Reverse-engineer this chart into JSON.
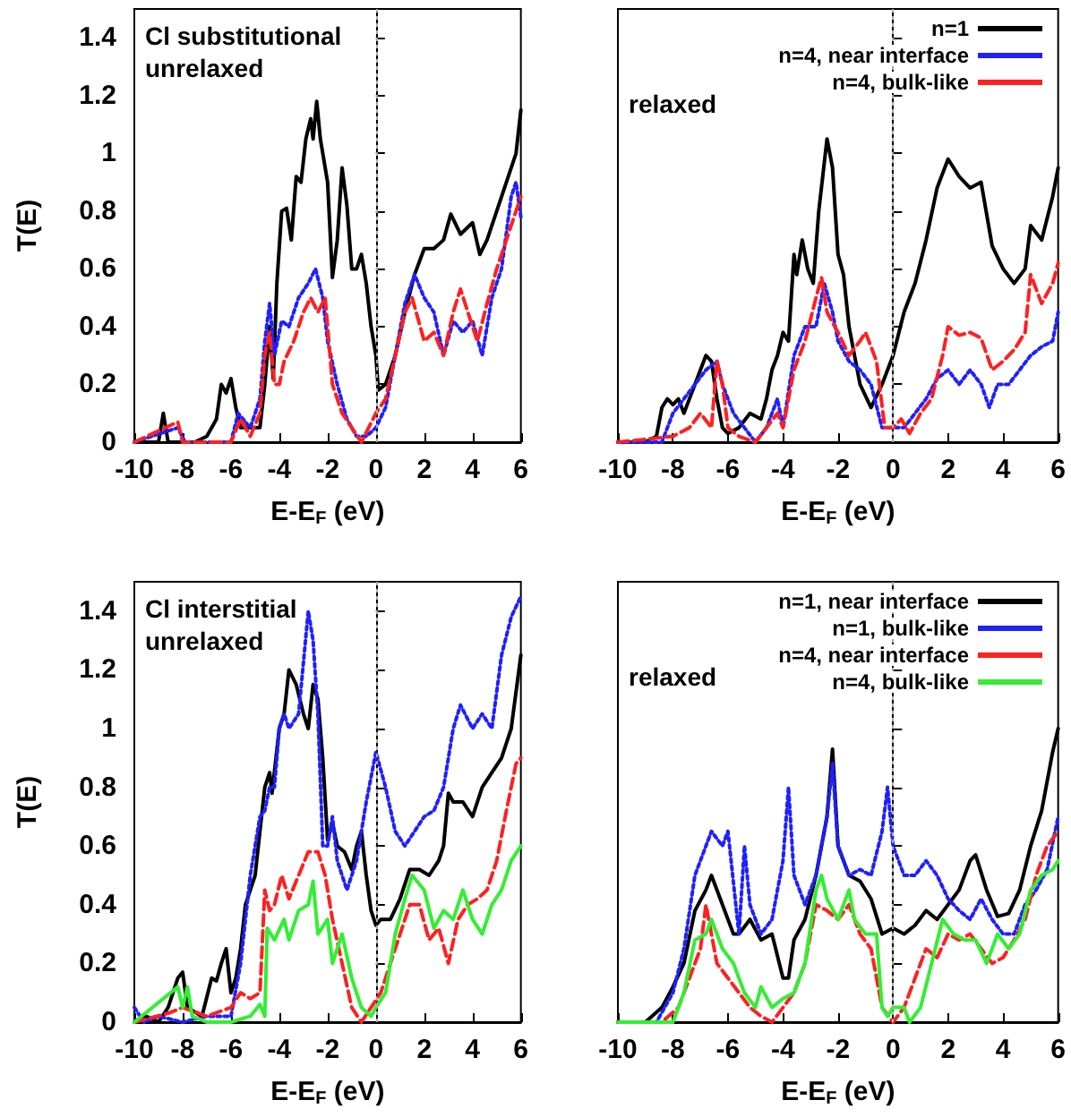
{
  "chart_data": [
    {
      "type": "line",
      "xlabel": "E-E$_{F}$ (eV)",
      "ylabel": "T(E)",
      "annotations": [
        "Cl substitutional\nunrelaxed"
      ],
      "xlim": [
        -10,
        6
      ],
      "xticks": [
        -10,
        -8,
        -6,
        -4,
        -2,
        0,
        2,
        4,
        6
      ],
      "ylim": [
        0,
        1.5
      ],
      "yticks": [
        0,
        0.2,
        0.4,
        0.6,
        0.8,
        1,
        1.2,
        1.4
      ],
      "grid": false,
      "ref_lines": [
        {
          "axis": "x",
          "value": 0,
          "color": "#aaaaaa",
          "line_style": "dotted"
        }
      ],
      "series": [
        {
          "color": "#000000",
          "line_style": "solid",
          "x": [
            -10,
            -9,
            -8.8,
            -8.6,
            -8,
            -7.5,
            -7,
            -6.6,
            -6.4,
            -6.2,
            -6,
            -5.8,
            -5.6,
            -5.2,
            -4.8,
            -4.6,
            -4.4,
            -4.25,
            -4.1,
            -3.9,
            -3.7,
            -3.5,
            -3.3,
            -3.1,
            -2.9,
            -2.7,
            -2.6,
            -2.45,
            -2.3,
            -2,
            -1.8,
            -1.6,
            -1.4,
            -1.2,
            -1,
            -0.8,
            -0.6,
            -0.4,
            -0.2,
            0,
            0.1,
            0.4,
            0.8,
            1.2,
            1.6,
            2,
            2.4,
            2.8,
            3.1,
            3.5,
            4,
            4.3,
            4.6,
            5,
            5.4,
            5.8,
            6
          ],
          "values": [
            0,
            0,
            0.1,
            0,
            0,
            0,
            0.02,
            0.08,
            0.2,
            0.17,
            0.22,
            0.12,
            0.05,
            0.05,
            0.05,
            0.2,
            0.4,
            0.22,
            0.55,
            0.8,
            0.81,
            0.7,
            0.92,
            0.9,
            1.05,
            1.12,
            1.05,
            1.18,
            1.05,
            0.9,
            0.57,
            0.7,
            0.95,
            0.82,
            0.6,
            0.6,
            0.65,
            0.55,
            0.4,
            0.3,
            0.18,
            0.2,
            0.3,
            0.45,
            0.58,
            0.67,
            0.67,
            0.7,
            0.79,
            0.72,
            0.76,
            0.65,
            0.7,
            0.8,
            0.9,
            1,
            1.15
          ]
        },
        {
          "color": "#2020ff",
          "line_style": "dotted",
          "x": [
            -10,
            -8.2,
            -7.9,
            -6,
            -5.7,
            -5.2,
            -4.8,
            -4.6,
            -4.4,
            -4.2,
            -3.9,
            -3.6,
            -3.2,
            -2.8,
            -2.5,
            -2.2,
            -2,
            -1.6,
            -1.2,
            -0.8,
            -0.4,
            0,
            0.4,
            0.8,
            1.2,
            1.6,
            2,
            2.4,
            2.8,
            3.2,
            3.6,
            4,
            4.4,
            4.8,
            5.2,
            5.6,
            5.8,
            6
          ],
          "values": [
            0,
            0.05,
            0,
            0,
            0.1,
            0.05,
            0.15,
            0.35,
            0.48,
            0.3,
            0.42,
            0.4,
            0.5,
            0.55,
            0.6,
            0.5,
            0.35,
            0.2,
            0.08,
            0.02,
            0.02,
            0.05,
            0.12,
            0.3,
            0.48,
            0.58,
            0.5,
            0.45,
            0.3,
            0.42,
            0.38,
            0.42,
            0.3,
            0.5,
            0.6,
            0.85,
            0.9,
            0.78
          ]
        },
        {
          "color": "#ff2020",
          "line_style": "dashed",
          "x": [
            -10,
            -8.2,
            -8,
            -6,
            -5.6,
            -5.2,
            -4.8,
            -4.6,
            -4.4,
            -4.2,
            -4,
            -3.8,
            -3.4,
            -3,
            -2.7,
            -2.4,
            -2.1,
            -1.8,
            -1.4,
            -1,
            -0.6,
            -0.3,
            0,
            0.4,
            0.8,
            1.2,
            1.5,
            2,
            2.4,
            2.8,
            3.2,
            3.5,
            4,
            4.2,
            4.6,
            5,
            5.4,
            5.8,
            6
          ],
          "values": [
            0,
            0.07,
            0,
            0,
            0.08,
            0.02,
            0.1,
            0.3,
            0.38,
            0.2,
            0.2,
            0.28,
            0.35,
            0.45,
            0.5,
            0.45,
            0.5,
            0.2,
            0.1,
            0.05,
            0,
            0.05,
            0.1,
            0.15,
            0.3,
            0.45,
            0.5,
            0.35,
            0.38,
            0.3,
            0.45,
            0.53,
            0.4,
            0.35,
            0.48,
            0.6,
            0.7,
            0.8,
            0.85
          ]
        }
      ]
    },
    {
      "type": "line",
      "xlabel": "E-E$_{F}$ (eV)",
      "annotations": [
        "relaxed"
      ],
      "xlim": [
        -10,
        6
      ],
      "xticks": [
        -10,
        -8,
        -6,
        -4,
        -2,
        0,
        2,
        4,
        6
      ],
      "ylim": [
        0,
        1.5
      ],
      "yticks": [
        0,
        0.2,
        0.4,
        0.6,
        0.8,
        1,
        1.2,
        1.4
      ],
      "tick_labels": "x",
      "grid": false,
      "legend": "top right",
      "ref_lines": [
        {
          "axis": "x",
          "value": 0,
          "color": "#aaaaaa",
          "line_style": "dotted"
        }
      ],
      "series": [
        {
          "name": "n=1",
          "color": "#000000",
          "line_style": "solid",
          "x": [
            -10,
            -9,
            -8.6,
            -8.4,
            -8.2,
            -8,
            -7.8,
            -7.6,
            -7.4,
            -7.2,
            -7,
            -6.8,
            -6.6,
            -6.4,
            -6.2,
            -6,
            -5.6,
            -5.2,
            -4.8,
            -4.6,
            -4.4,
            -4.2,
            -4,
            -3.8,
            -3.6,
            -3.5,
            -3.3,
            -3.1,
            -2.9,
            -2.7,
            -2.4,
            -2.2,
            -2,
            -1.8,
            -1.6,
            -1.2,
            -0.8,
            -0.4,
            0,
            0.4,
            0.8,
            1.2,
            1.6,
            2,
            2.4,
            2.8,
            3.2,
            3.6,
            4,
            4.4,
            4.8,
            5,
            5.4,
            5.8,
            6
          ],
          "values": [
            0,
            0,
            0.02,
            0.12,
            0.15,
            0.13,
            0.15,
            0.1,
            0.15,
            0.2,
            0.25,
            0.3,
            0.28,
            0.15,
            0.05,
            0.03,
            0.05,
            0.1,
            0.08,
            0.15,
            0.25,
            0.3,
            0.38,
            0.35,
            0.65,
            0.58,
            0.7,
            0.6,
            0.55,
            0.8,
            1.05,
            0.95,
            0.65,
            0.58,
            0.4,
            0.2,
            0.12,
            0.2,
            0.3,
            0.45,
            0.55,
            0.7,
            0.88,
            0.98,
            0.92,
            0.88,
            0.9,
            0.68,
            0.6,
            0.55,
            0.6,
            0.75,
            0.7,
            0.85,
            0.95
          ]
        },
        {
          "name": "n=4, near interface",
          "color": "#2020ff",
          "line_style": "dotted",
          "x": [
            -10,
            -8.4,
            -8,
            -7.6,
            -7.2,
            -6.8,
            -6.4,
            -6.2,
            -5.8,
            -5.4,
            -5,
            -4.6,
            -4.2,
            -4,
            -3.6,
            -3.2,
            -2.8,
            -2.5,
            -2.2,
            -2,
            -1.6,
            -1.2,
            -0.8,
            -0.4,
            0,
            0.4,
            0.8,
            1.2,
            1.6,
            2,
            2.4,
            2.8,
            3.2,
            3.5,
            3.8,
            4.2,
            4.6,
            5,
            5.4,
            5.8,
            6
          ],
          "values": [
            0,
            0,
            0.1,
            0.15,
            0.2,
            0.25,
            0.28,
            0.2,
            0.1,
            0.05,
            0,
            0.05,
            0.15,
            0.05,
            0.3,
            0.4,
            0.4,
            0.55,
            0.45,
            0.35,
            0.28,
            0.25,
            0.2,
            0.05,
            0.05,
            0.05,
            0.1,
            0.15,
            0.22,
            0.25,
            0.2,
            0.25,
            0.2,
            0.12,
            0.2,
            0.2,
            0.25,
            0.3,
            0.33,
            0.35,
            0.45
          ]
        },
        {
          "name": "n=4, bulk-like",
          "color": "#ff2020",
          "line_style": "dashed",
          "x": [
            -10,
            -8,
            -7.4,
            -7,
            -6.6,
            -6.4,
            -6.2,
            -6,
            -5.6,
            -5,
            -4.6,
            -4.2,
            -4,
            -3.6,
            -3.2,
            -2.8,
            -2.6,
            -2.4,
            -2,
            -1.6,
            -1.2,
            -1,
            -0.6,
            -0.3,
            0,
            0.3,
            0.6,
            1,
            1.4,
            1.8,
            2,
            2.4,
            2.8,
            3.2,
            3.6,
            4,
            4.4,
            4.8,
            5,
            5.4,
            5.8,
            6
          ],
          "values": [
            0,
            0.02,
            0.05,
            0.1,
            0.05,
            0.28,
            0.2,
            0.05,
            0.02,
            0,
            0.05,
            0.1,
            0.05,
            0.25,
            0.35,
            0.5,
            0.57,
            0.45,
            0.38,
            0.3,
            0.35,
            0.38,
            0.28,
            0.05,
            0.05,
            0.08,
            0.03,
            0.1,
            0.15,
            0.3,
            0.4,
            0.37,
            0.38,
            0.36,
            0.25,
            0.28,
            0.32,
            0.38,
            0.58,
            0.48,
            0.55,
            0.62
          ]
        }
      ]
    },
    {
      "type": "line",
      "xlabel": "E-E$_{F}$ (eV)",
      "ylabel": "T(E)",
      "annotations": [
        "Cl interstitial\nunrelaxed"
      ],
      "xlim": [
        -10,
        6
      ],
      "xticks": [
        -10,
        -8,
        -6,
        -4,
        -2,
        0,
        2,
        4,
        6
      ],
      "ylim": [
        0,
        1.5
      ],
      "yticks": [
        0,
        0.2,
        0.4,
        0.6,
        0.8,
        1,
        1.2,
        1.4
      ],
      "grid": false,
      "ref_lines": [
        {
          "axis": "x",
          "value": 0,
          "color": "#aaaaaa",
          "line_style": "dotted"
        }
      ],
      "series": [
        {
          "color": "#000000",
          "line_style": "solid",
          "x": [
            -10,
            -9.5,
            -9,
            -8.6,
            -8.4,
            -8.2,
            -8,
            -7.8,
            -7.2,
            -6.8,
            -6.6,
            -6.4,
            -6.2,
            -6,
            -5.8,
            -5.6,
            -5.4,
            -5.2,
            -5,
            -4.8,
            -4.6,
            -4.4,
            -4.3,
            -4,
            -3.8,
            -3.6,
            -3.3,
            -3,
            -2.8,
            -2.6,
            -2.4,
            -2.2,
            -2,
            -1.8,
            -1.6,
            -1.3,
            -1,
            -0.8,
            -0.6,
            -0.4,
            -0.2,
            0,
            0.2,
            0.6,
            1,
            1.4,
            1.8,
            2.2,
            2.6,
            2.8,
            3,
            3.2,
            3.6,
            4,
            4.4,
            4.8,
            5.2,
            5.6,
            6
          ],
          "values": [
            0,
            0.02,
            0,
            0.05,
            0.1,
            0.15,
            0.17,
            0.05,
            0.02,
            0.15,
            0.14,
            0.2,
            0.25,
            0.1,
            0.15,
            0.25,
            0.4,
            0.45,
            0.5,
            0.65,
            0.8,
            0.85,
            0.78,
            1,
            1.05,
            1.2,
            1.15,
            1.05,
            1,
            1.15,
            1.1,
            0.9,
            0.62,
            0.68,
            0.6,
            0.58,
            0.52,
            0.6,
            0.65,
            0.5,
            0.38,
            0.33,
            0.35,
            0.35,
            0.42,
            0.52,
            0.52,
            0.5,
            0.55,
            0.6,
            0.78,
            0.75,
            0.75,
            0.7,
            0.8,
            0.85,
            0.9,
            1,
            1.25
          ]
        },
        {
          "color": "#2020ff",
          "line_style": "dotted",
          "x": [
            -10,
            -9.6,
            -9,
            -8,
            -7,
            -6,
            -5.6,
            -5.2,
            -4.8,
            -4.6,
            -4.4,
            -4.2,
            -4,
            -3.8,
            -3.6,
            -3.2,
            -2.8,
            -2.6,
            -2.4,
            -2.2,
            -2,
            -1.8,
            -1.6,
            -1.2,
            -0.8,
            -0.4,
            0,
            0.4,
            0.8,
            1.2,
            1.6,
            2,
            2.4,
            2.8,
            3.2,
            3.5,
            4,
            4.4,
            4.8,
            5.2,
            5.6,
            6
          ],
          "values": [
            0.05,
            0,
            0.02,
            0,
            0.02,
            0.02,
            0.2,
            0.5,
            0.7,
            0.72,
            0.8,
            0.8,
            1,
            1.05,
            1,
            1.05,
            1.4,
            1.3,
            1.05,
            0.6,
            0.6,
            0.7,
            0.55,
            0.45,
            0.55,
            0.75,
            0.92,
            0.8,
            0.65,
            0.6,
            0.65,
            0.7,
            0.72,
            0.8,
            1,
            1.08,
            1,
            1.05,
            1,
            1.25,
            1.38,
            1.45
          ]
        },
        {
          "color": "#ff2020",
          "line_style": "dashed",
          "x": [
            -10,
            -8.6,
            -8,
            -7,
            -6,
            -5.6,
            -5.2,
            -4.8,
            -4.6,
            -4.4,
            -4.2,
            -3.9,
            -3.6,
            -3.2,
            -2.8,
            -2.4,
            -2.1,
            -1.8,
            -1.4,
            -1,
            -0.6,
            -0.2,
            0.2,
            0.6,
            1,
            1.4,
            1.8,
            2.2,
            2.6,
            3,
            3.4,
            3.8,
            4.2,
            4.6,
            5,
            5.4,
            5.8,
            6
          ],
          "values": [
            0,
            0.03,
            0.05,
            0.02,
            0.05,
            0.1,
            0.08,
            0.1,
            0.45,
            0.38,
            0.4,
            0.5,
            0.42,
            0.5,
            0.58,
            0.58,
            0.5,
            0.35,
            0.2,
            0.05,
            0,
            0.05,
            0.1,
            0.2,
            0.3,
            0.4,
            0.4,
            0.28,
            0.32,
            0.2,
            0.35,
            0.4,
            0.42,
            0.45,
            0.55,
            0.72,
            0.88,
            0.9
          ]
        },
        {
          "color": "#33ee33",
          "line_style": "solid",
          "x": [
            -10,
            -8.2,
            -8,
            -7.8,
            -7.6,
            -7,
            -6,
            -5.2,
            -4.8,
            -4.6,
            -4.5,
            -4.2,
            -3.8,
            -3.6,
            -3.2,
            -2.8,
            -2.6,
            -2.4,
            -2,
            -1.8,
            -1.4,
            -1,
            -0.6,
            -0.2,
            0,
            0.4,
            0.8,
            1.2,
            1.5,
            2,
            2.4,
            2.8,
            3.2,
            3.6,
            4,
            4.4,
            4.8,
            5.2,
            5.6,
            6
          ],
          "values": [
            0,
            0.12,
            0.05,
            0.12,
            0.02,
            0,
            0,
            0.02,
            0.06,
            0.02,
            0.32,
            0.28,
            0.35,
            0.28,
            0.38,
            0.4,
            0.48,
            0.3,
            0.35,
            0.2,
            0.3,
            0.15,
            0.05,
            0.02,
            0.05,
            0.1,
            0.3,
            0.42,
            0.5,
            0.45,
            0.32,
            0.38,
            0.35,
            0.45,
            0.35,
            0.3,
            0.4,
            0.45,
            0.55,
            0.6
          ]
        }
      ]
    },
    {
      "type": "line",
      "xlabel": "E-E$_{F}$ (eV)",
      "annotations": [
        "relaxed"
      ],
      "xlim": [
        -10,
        6
      ],
      "xticks": [
        -10,
        -8,
        -6,
        -4,
        -2,
        0,
        2,
        4,
        6
      ],
      "ylim": [
        0,
        1.5
      ],
      "yticks": [
        0,
        0.2,
        0.4,
        0.6,
        0.8,
        1,
        1.2,
        1.4
      ],
      "tick_labels": "x",
      "grid": false,
      "legend": "top right",
      "ref_lines": [
        {
          "axis": "x",
          "value": 0,
          "color": "#aaaaaa",
          "line_style": "dotted"
        }
      ],
      "series": [
        {
          "name": "n=1, near interface",
          "color": "#000000",
          "line_style": "solid",
          "x": [
            -10,
            -9,
            -8.4,
            -8,
            -7.6,
            -7.2,
            -6.8,
            -6.6,
            -6.2,
            -5.8,
            -5.6,
            -5.2,
            -4.8,
            -4.4,
            -4,
            -3.8,
            -3.6,
            -3.2,
            -2.8,
            -2.6,
            -2.4,
            -2.2,
            -2,
            -1.6,
            -1.2,
            -0.8,
            -0.4,
            0,
            0.4,
            0.8,
            1.2,
            1.6,
            2,
            2.4,
            2.8,
            3,
            3.4,
            3.8,
            4.2,
            4.6,
            5,
            5.4,
            5.8,
            6
          ],
          "values": [
            0,
            0,
            0.05,
            0.12,
            0.2,
            0.38,
            0.45,
            0.5,
            0.4,
            0.3,
            0.3,
            0.35,
            0.28,
            0.3,
            0.15,
            0.15,
            0.28,
            0.35,
            0.5,
            0.6,
            0.7,
            0.93,
            0.6,
            0.5,
            0.48,
            0.42,
            0.3,
            0.32,
            0.3,
            0.33,
            0.38,
            0.35,
            0.4,
            0.45,
            0.55,
            0.57,
            0.45,
            0.36,
            0.37,
            0.45,
            0.6,
            0.72,
            0.92,
            1
          ]
        },
        {
          "name": "n=1, bulk-like",
          "color": "#2020ff",
          "line_style": "dotted",
          "x": [
            -10,
            -8.6,
            -8,
            -7.6,
            -7.2,
            -6.8,
            -6.6,
            -6.2,
            -6,
            -5.6,
            -5.4,
            -5.2,
            -4.8,
            -4.4,
            -4,
            -3.8,
            -3.6,
            -3.2,
            -2.8,
            -2.6,
            -2.4,
            -2.2,
            -2,
            -1.6,
            -1.2,
            -0.8,
            -0.4,
            -0.2,
            0,
            0.4,
            0.8,
            1.2,
            1.6,
            2,
            2.4,
            2.8,
            3.2,
            3.6,
            4,
            4.4,
            4.8,
            5.2,
            5.6,
            6
          ],
          "values": [
            0,
            0,
            0.1,
            0.25,
            0.5,
            0.6,
            0.65,
            0.6,
            0.65,
            0.3,
            0.6,
            0.4,
            0.3,
            0.35,
            0.55,
            0.8,
            0.5,
            0.4,
            0.5,
            0.6,
            0.7,
            0.88,
            0.6,
            0.5,
            0.52,
            0.5,
            0.65,
            0.8,
            0.6,
            0.5,
            0.5,
            0.55,
            0.5,
            0.42,
            0.38,
            0.35,
            0.42,
            0.35,
            0.3,
            0.3,
            0.4,
            0.45,
            0.52,
            0.7
          ]
        },
        {
          "name": "n=4, near interface",
          "color": "#ff2020",
          "line_style": "dashed",
          "x": [
            -10,
            -8.4,
            -7.8,
            -7.4,
            -7,
            -6.8,
            -6.4,
            -6,
            -5.6,
            -5.2,
            -4.8,
            -4.4,
            -4,
            -3.6,
            -3.2,
            -2.8,
            -2.4,
            -2,
            -1.6,
            -1.2,
            -0.8,
            -0.4,
            0,
            0.4,
            0.8,
            1.2,
            1.6,
            2,
            2.4,
            2.8,
            3.2,
            3.6,
            4,
            4.4,
            4.8,
            5.2,
            5.6,
            6
          ],
          "values": [
            0,
            0,
            0.05,
            0.15,
            0.25,
            0.4,
            0.2,
            0.15,
            0.1,
            0.05,
            0.02,
            0,
            0.05,
            0.1,
            0.2,
            0.4,
            0.38,
            0.35,
            0.4,
            0.3,
            0.25,
            0.05,
            0,
            0.05,
            0.15,
            0.25,
            0.22,
            0.3,
            0.28,
            0.3,
            0.25,
            0.2,
            0.22,
            0.28,
            0.35,
            0.5,
            0.6,
            0.65
          ]
        },
        {
          "name": "n=4, bulk-like",
          "color": "#33ee33",
          "line_style": "solid",
          "x": [
            -10,
            -8,
            -7.6,
            -7.2,
            -6.8,
            -6.6,
            -6.2,
            -5.8,
            -5.4,
            -5,
            -4.8,
            -4.4,
            -4,
            -3.6,
            -3.2,
            -2.8,
            -2.6,
            -2.4,
            -2,
            -1.6,
            -1.4,
            -1,
            -0.6,
            -0.4,
            -0.2,
            0,
            0.4,
            0.6,
            1,
            1.4,
            1.8,
            2.2,
            2.6,
            3,
            3.4,
            3.8,
            4.2,
            4.6,
            5,
            5.4,
            5.8,
            6
          ],
          "values": [
            0,
            0,
            0.1,
            0.28,
            0.3,
            0.35,
            0.25,
            0.2,
            0.1,
            0.05,
            0.12,
            0.05,
            0.08,
            0.1,
            0.2,
            0.45,
            0.5,
            0.42,
            0.35,
            0.45,
            0.35,
            0.3,
            0.3,
            0.05,
            0.02,
            0.05,
            0.05,
            0,
            0.05,
            0.2,
            0.35,
            0.3,
            0.28,
            0.28,
            0.2,
            0.3,
            0.25,
            0.3,
            0.45,
            0.5,
            0.52,
            0.55
          ]
        }
      ]
    }
  ]
}
